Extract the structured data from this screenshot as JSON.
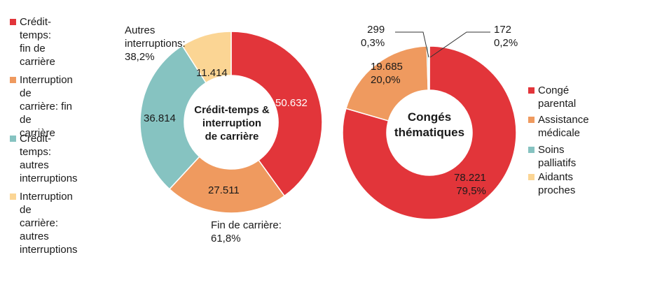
{
  "colors": {
    "red": "#e2353a",
    "orange": "#ef9a5f",
    "teal": "#86c3c1",
    "yellow": "#fbd594"
  },
  "chart_data": [
    {
      "type": "pie",
      "variant": "donut",
      "center_label": "Crédit-temps &\ninterruption\nde carrière",
      "slices": [
        {
          "name": "Crédit-temps: fin de carrière",
          "value": 50632,
          "label": "50.632",
          "color": "#e2353a"
        },
        {
          "name": "Interruption de carrière: fin de carrière",
          "value": 27511,
          "label": "27.511",
          "color": "#ef9a5f"
        },
        {
          "name": "Crédit-temps: autres interruptions",
          "value": 36814,
          "label": "36.814",
          "color": "#86c3c1"
        },
        {
          "name": "Interruption de carrière: autres interruptions",
          "value": 11414,
          "label": "11.414",
          "color": "#fbd594"
        }
      ],
      "legend": [
        {
          "label": "Crédit-temps:\nfin de carrière",
          "color": "#e2353a"
        },
        {
          "label": "Interruption de\ncarrière: fin de\ncarrière",
          "color": "#ef9a5f"
        },
        {
          "label": "Crédit-temps:\nautres\ninterruptions",
          "color": "#86c3c1"
        },
        {
          "label": "Interruption de\ncarrière:\nautres\ninterruptions",
          "color": "#fbd594"
        }
      ],
      "legend_position": "left",
      "annotations": [
        {
          "text": "Autres\ninterruptions:\n38,2%"
        },
        {
          "text": "Fin de carrière:\n61,8%"
        }
      ]
    },
    {
      "type": "pie",
      "variant": "donut",
      "center_label": "Congés\nthématiques",
      "slices": [
        {
          "name": "Congé parental",
          "value": 78221,
          "label": "78.221\n79,5%",
          "color": "#e2353a"
        },
        {
          "name": "Assistance médicale",
          "value": 19685,
          "label": "19.685\n20,0%",
          "color": "#ef9a5f"
        },
        {
          "name": "Soins palliatifs",
          "value": 299,
          "label": "299\n0,3%",
          "color": "#86c3c1"
        },
        {
          "name": "Aidants proches",
          "value": 172,
          "label": "172\n0,2%",
          "color": "#fbd594"
        }
      ],
      "legend": [
        {
          "label": "Congé parental",
          "color": "#e2353a"
        },
        {
          "label": "Assistance\nmédicale",
          "color": "#ef9a5f"
        },
        {
          "label": "Soins palliatifs",
          "color": "#86c3c1"
        },
        {
          "label": "Aidants proches",
          "color": "#fbd594"
        }
      ],
      "legend_position": "right"
    }
  ]
}
